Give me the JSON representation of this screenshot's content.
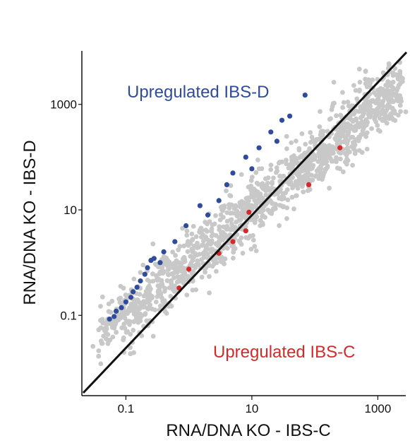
{
  "chart_data": {
    "type": "scatter",
    "xlabel": "RNA/DNA KO - IBS-C",
    "ylabel": "RNA/DNA KO - IBS-D",
    "x_scale": "log",
    "y_scale": "log",
    "xlim": [
      0.02,
      3000
    ],
    "ylim": [
      0.003,
      11000
    ],
    "x_ticks": [
      {
        "value": 0.1,
        "label": "0.1"
      },
      {
        "value": 10,
        "label": "10"
      },
      {
        "value": 1000,
        "label": "1000"
      }
    ],
    "y_ticks": [
      {
        "value": 0.1,
        "label": "0.1"
      },
      {
        "value": 10,
        "label": "10"
      },
      {
        "value": 1000,
        "label": "1000"
      }
    ],
    "grid": false,
    "reference_line": "y = x",
    "annotations": [
      {
        "text": "Upregulated IBS-D",
        "color": "#2f4b9c"
      },
      {
        "text": "Upregulated IBS-C",
        "color": "#d42a2a"
      }
    ],
    "series": [
      {
        "color": "#2f4b9c",
        "points": [
          [
            0.055,
            0.085
          ],
          [
            0.065,
            0.095
          ],
          [
            0.07,
            0.12
          ],
          [
            0.085,
            0.14
          ],
          [
            0.1,
            0.18
          ],
          [
            0.12,
            0.22
          ],
          [
            0.13,
            0.28
          ],
          [
            0.15,
            0.34
          ],
          [
            0.17,
            0.45
          ],
          [
            0.22,
            0.8
          ],
          [
            0.25,
            1.1
          ],
          [
            0.2,
            0.6
          ],
          [
            0.28,
            1.2
          ],
          [
            0.4,
            1.6
          ],
          [
            0.6,
            2.5
          ],
          [
            0.9,
            5
          ],
          [
            1.5,
            12
          ],
          [
            2,
            8
          ],
          [
            4,
            30
          ],
          [
            5,
            50
          ],
          [
            8,
            100
          ],
          [
            10,
            60
          ],
          [
            13,
            150
          ],
          [
            20,
            300
          ],
          [
            30,
            500
          ],
          [
            40,
            600
          ],
          [
            70,
            1500
          ],
          [
            25,
            200
          ],
          [
            3,
            15
          ],
          [
            0.35,
            1.0
          ]
        ]
      },
      {
        "color": "#d42a2a",
        "points": [
          [
            0.7,
            0.33
          ],
          [
            1.0,
            0.75
          ],
          [
            3,
            1.5
          ],
          [
            5,
            2.5
          ],
          [
            8,
            4
          ],
          [
            9,
            9
          ],
          [
            80,
            30
          ],
          [
            250,
            150
          ]
        ]
      },
      {
        "color": "#c8c8c8",
        "count": 1400,
        "center_line": "y = x",
        "log_spread": 0.35
      }
    ]
  }
}
